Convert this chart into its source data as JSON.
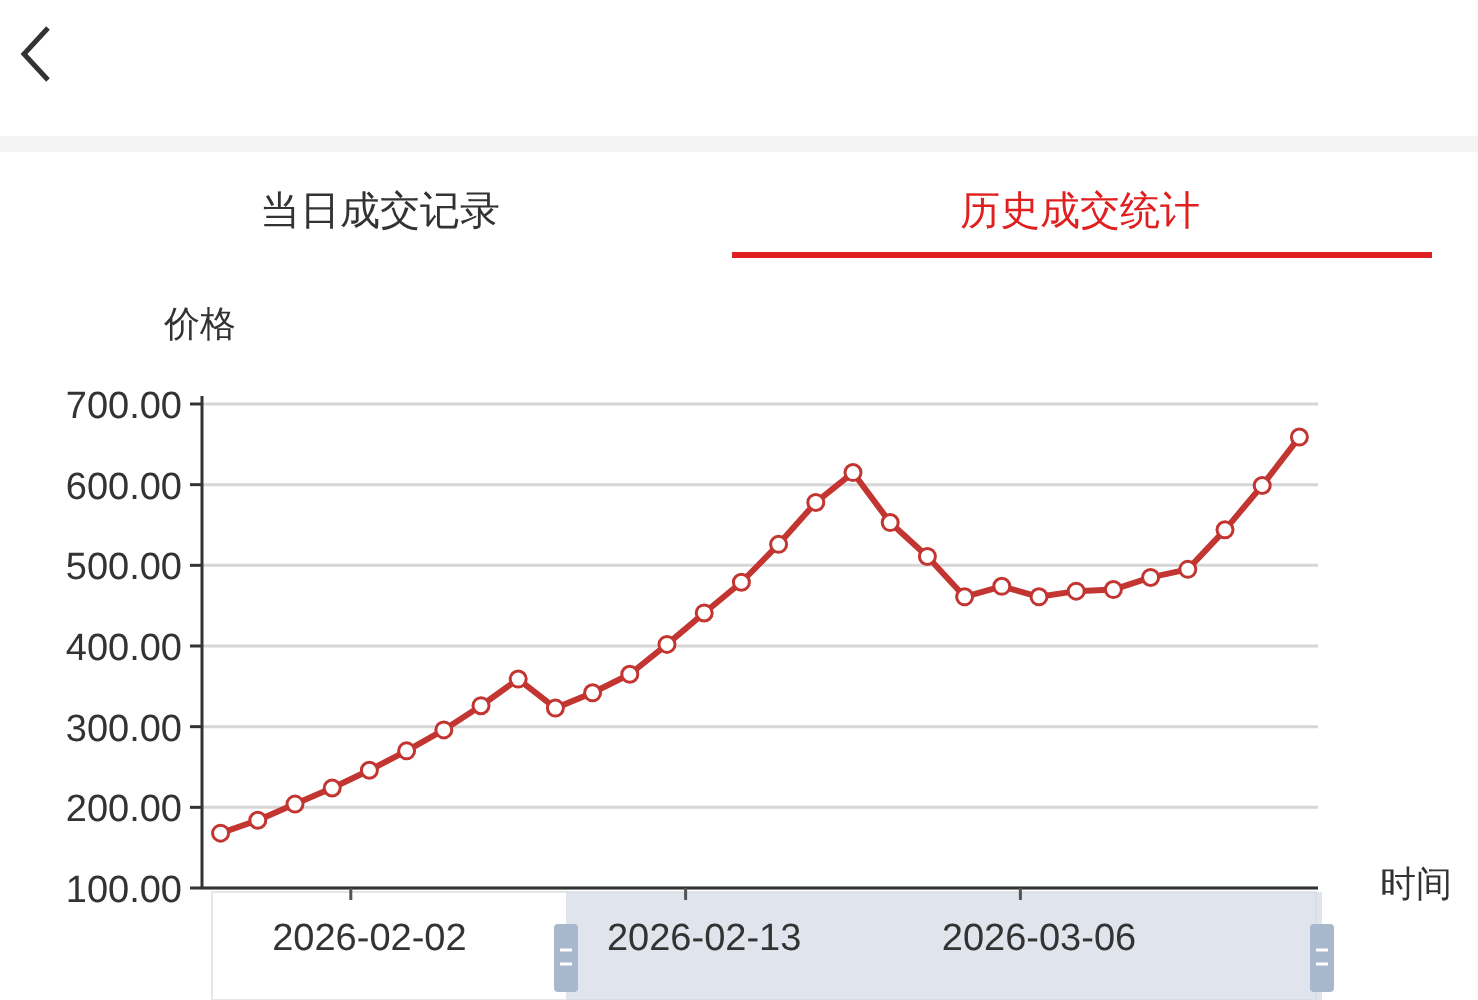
{
  "chart_data": {
    "type": "line",
    "annotations": [
      "当日成交记录",
      "历史成交统计"
    ],
    "xlabel": "时间",
    "ylabel": "价格",
    "categories": [
      null,
      null,
      null,
      null,
      "2026-02-02",
      null,
      null,
      null,
      null,
      null,
      null,
      null,
      null,
      "2026-02-13",
      null,
      null,
      null,
      null,
      null,
      null,
      null,
      null,
      "2026-03-06",
      null,
      null,
      null,
      null,
      null,
      null,
      null
    ],
    "series": [
      {
        "color": "#c23531",
        "values": [
          168,
          184,
          204,
          224,
          246,
          270,
          296,
          326,
          359,
          323,
          342,
          365,
          402,
          441,
          479,
          526,
          578,
          615,
          553,
          511,
          461,
          474,
          461,
          468,
          470,
          485,
          495,
          544,
          599,
          659
        ]
      }
    ],
    "ylim": [
      100,
      700
    ],
    "yticks": [
      {
        "value": 100,
        "label": "100.00"
      },
      {
        "value": 200,
        "label": "200.00"
      },
      {
        "value": 300,
        "label": "300.00"
      },
      {
        "value": 400,
        "label": "400.00"
      },
      {
        "value": 500,
        "label": "500.00"
      },
      {
        "value": 600,
        "label": "600.00"
      },
      {
        "value": 700,
        "label": "700.00"
      }
    ],
    "grid": "y",
    "marker": "circle",
    "line_style": "solid"
  }
}
